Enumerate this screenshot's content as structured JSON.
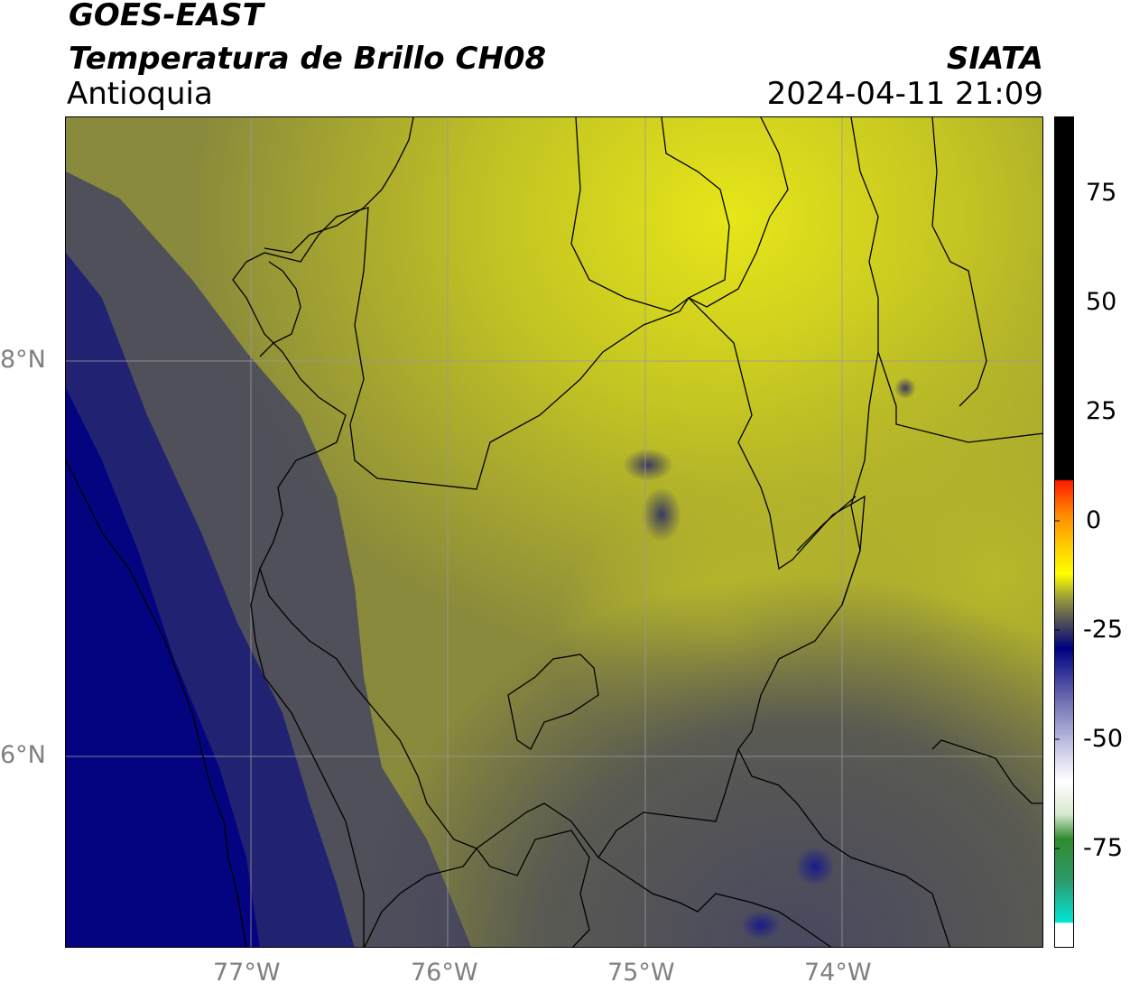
{
  "header": {
    "satellite": "GOES-EAST",
    "product": "Temperatura de Brillo CH08",
    "region": "Antioquia",
    "agency": "SIATA",
    "datetime": "2024-04-11 21:09"
  },
  "map": {
    "lat_labels": [
      "8°N",
      "6°N"
    ],
    "lon_labels": [
      "77°W",
      "76°W",
      "75°W",
      "74°W"
    ],
    "gridline_color": "#9a9a9a",
    "border_color": "#000000"
  },
  "colorbar": {
    "tick_labels": [
      "75",
      "50",
      "25",
      "0",
      "-25",
      "-50",
      "-75"
    ],
    "colors": {
      "top_black": "#000000",
      "red": "#ff1a00",
      "orange": "#ff9a00",
      "yellow": "#ffff00",
      "olive": "#9a9a3a",
      "gray": "#4a4a5a",
      "navy": "#000080",
      "lavender": "#c8c8e8",
      "white": "#ffffff",
      "green": "#2e8b2e",
      "cyan": "#00e5d4"
    }
  }
}
